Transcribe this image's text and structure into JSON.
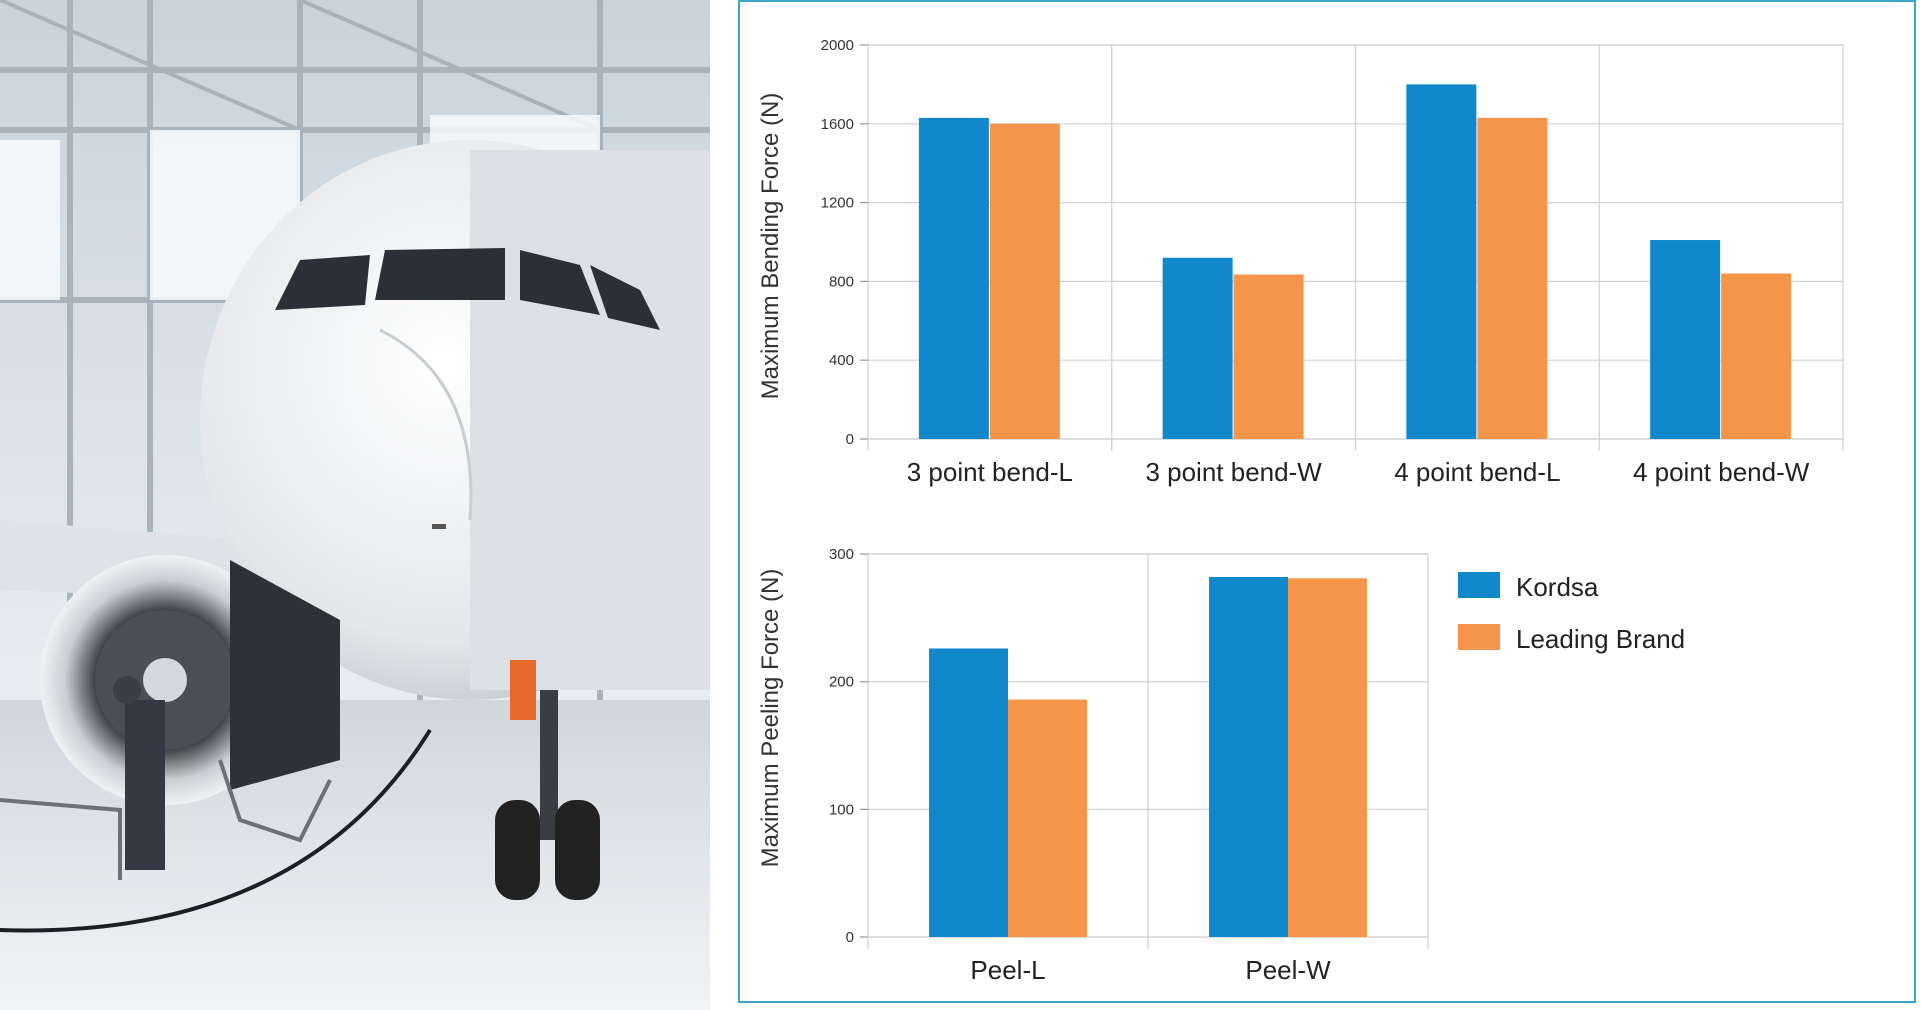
{
  "colors": {
    "kordsa": "#1288cc",
    "leading_brand": "#f5954a",
    "grid": "#d0d0d0",
    "panel_border": "#3aa7c8"
  },
  "photo": {
    "subject": "airplane-in-hangar"
  },
  "legend": {
    "placement": "right-of-bottom-chart",
    "items": [
      {
        "label": "Kordsa",
        "color": "#1288cc"
      },
      {
        "label": "Leading Brand",
        "color": "#f5954a"
      }
    ]
  },
  "chart_data": [
    {
      "type": "bar",
      "title": "",
      "ylabel": "Maximum Bending Force (N)",
      "xlabel": "",
      "ylim": [
        0,
        2000
      ],
      "yticks": [
        0,
        400,
        800,
        1200,
        1600,
        2000
      ],
      "grid": true,
      "categories": [
        "3 point bend-L",
        "3 point bend-W",
        "4 point bend-L",
        "4 point bend-W"
      ],
      "series": [
        {
          "name": "Kordsa",
          "values": [
            1630,
            920,
            1800,
            1010
          ]
        },
        {
          "name": "Leading Brand",
          "values": [
            1600,
            835,
            1630,
            840
          ]
        }
      ]
    },
    {
      "type": "bar",
      "title": "",
      "ylabel": "Maximum Peeling Force (N)",
      "xlabel": "",
      "ylim": [
        0,
        300
      ],
      "yticks": [
        0,
        100,
        200,
        300
      ],
      "grid": true,
      "categories": [
        "Peel-L",
        "Peel-W"
      ],
      "series": [
        {
          "name": "Kordsa",
          "values": [
            226,
            282
          ]
        },
        {
          "name": "Leading Brand",
          "values": [
            186,
            281
          ]
        }
      ]
    }
  ]
}
